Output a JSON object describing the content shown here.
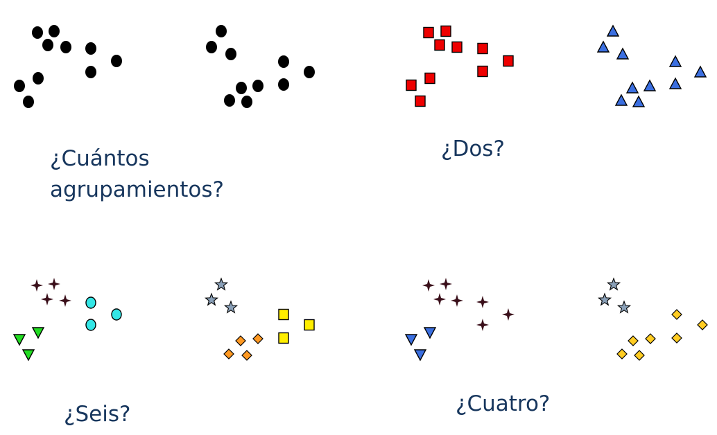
{
  "captions": {
    "how_many_line1": "¿Cuántos",
    "how_many_line2": "agrupamientos?",
    "two": "¿Dos?",
    "six": "¿Seis?",
    "four": "¿Cuatro?"
  },
  "colors": {
    "caption": "#17365d",
    "black_dot": "#000000",
    "red_square": "#ee0000",
    "blue_triangle": "#3b6fe0",
    "dark_star4": "#3a0f1a",
    "cyan_circle": "#33e6e6",
    "green_triangle": "#22dd22",
    "gray_star5": "#8aa0b8",
    "orange_diamond": "#ff9922",
    "yellow_square": "#ffee00",
    "blue_down_triangle": "#3b6fe0",
    "gold_diamond": "#ffcc22"
  },
  "panels": [
    {
      "id": "ungrouped",
      "marker": "dot",
      "color_key": "black_dot"
    },
    {
      "id": "two_clusters_left",
      "marker": "square",
      "color_key": "red_square"
    },
    {
      "id": "two_clusters_right",
      "marker": "triangle-up",
      "color_key": "blue_triangle"
    },
    {
      "id": "six_clusters",
      "markers": [
        "star4",
        "circle",
        "triangle-down",
        "star5",
        "diamond",
        "square"
      ]
    },
    {
      "id": "four_clusters",
      "markers": [
        "star4",
        "triangle-down",
        "star5",
        "diamond"
      ]
    }
  ]
}
